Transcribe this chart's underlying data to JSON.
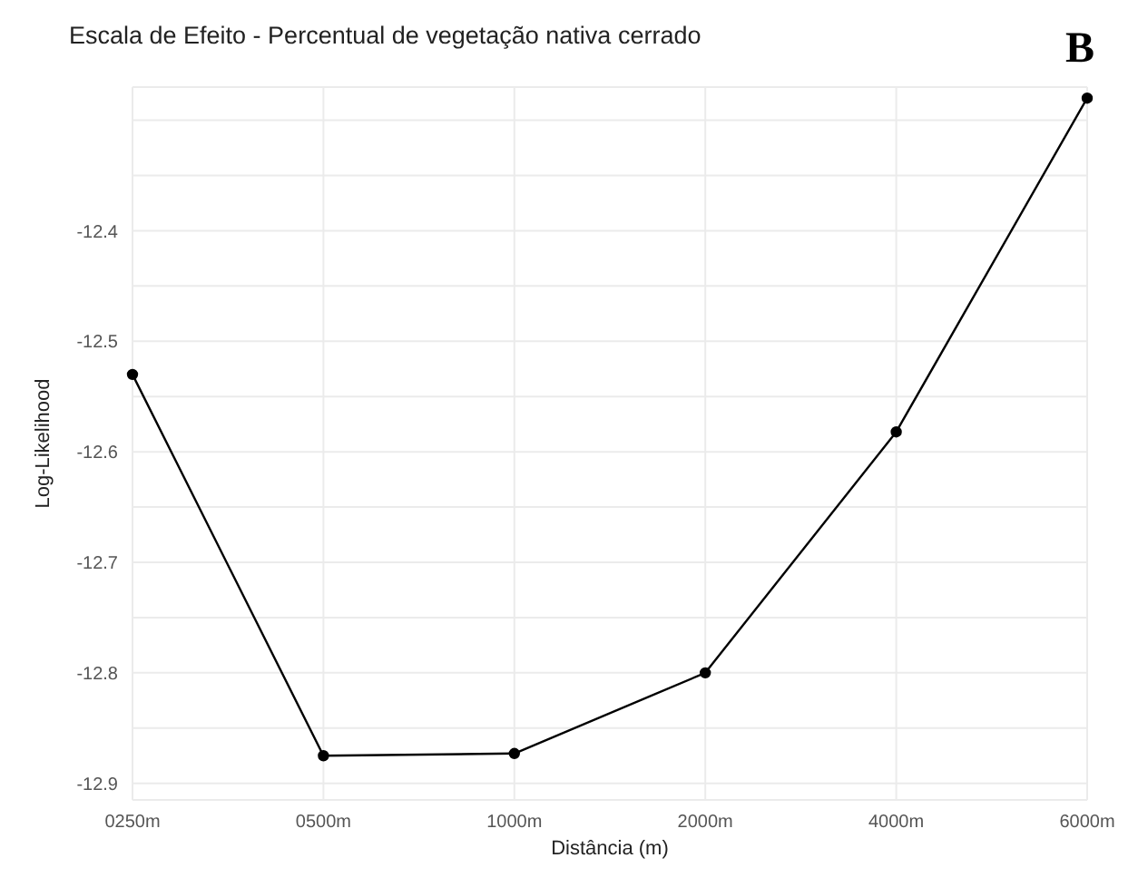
{
  "chart_data": {
    "type": "line",
    "title": "Escala de Efeito - Percentual de vegetação nativa cerrado",
    "xlabel": "Distância (m)",
    "ylabel": "Log-Likelihood",
    "annotations": [
      "B"
    ],
    "categories": [
      "0250m",
      "0500m",
      "1000m",
      "2000m",
      "4000m",
      "6000m"
    ],
    "series": [
      {
        "color": "#000000",
        "values": [
          -12.53,
          -12.875,
          -12.873,
          -12.8,
          -12.582,
          -12.28
        ]
      }
    ],
    "ylim": [
      -12.915,
      -12.27
    ],
    "yticks": [
      -12.9,
      {
        "value": -12.85,
        "label": null
      },
      -12.8,
      {
        "value": -12.75,
        "label": null
      },
      -12.7,
      {
        "value": -12.65,
        "label": null
      },
      -12.6,
      {
        "value": -12.55,
        "label": null
      },
      -12.5,
      {
        "value": -12.45,
        "label": null
      },
      -12.4,
      {
        "value": -12.35,
        "label": null
      },
      {
        "value": -12.3,
        "label": null
      }
    ],
    "grid": true,
    "marker": "circle",
    "line_style": "solid"
  }
}
